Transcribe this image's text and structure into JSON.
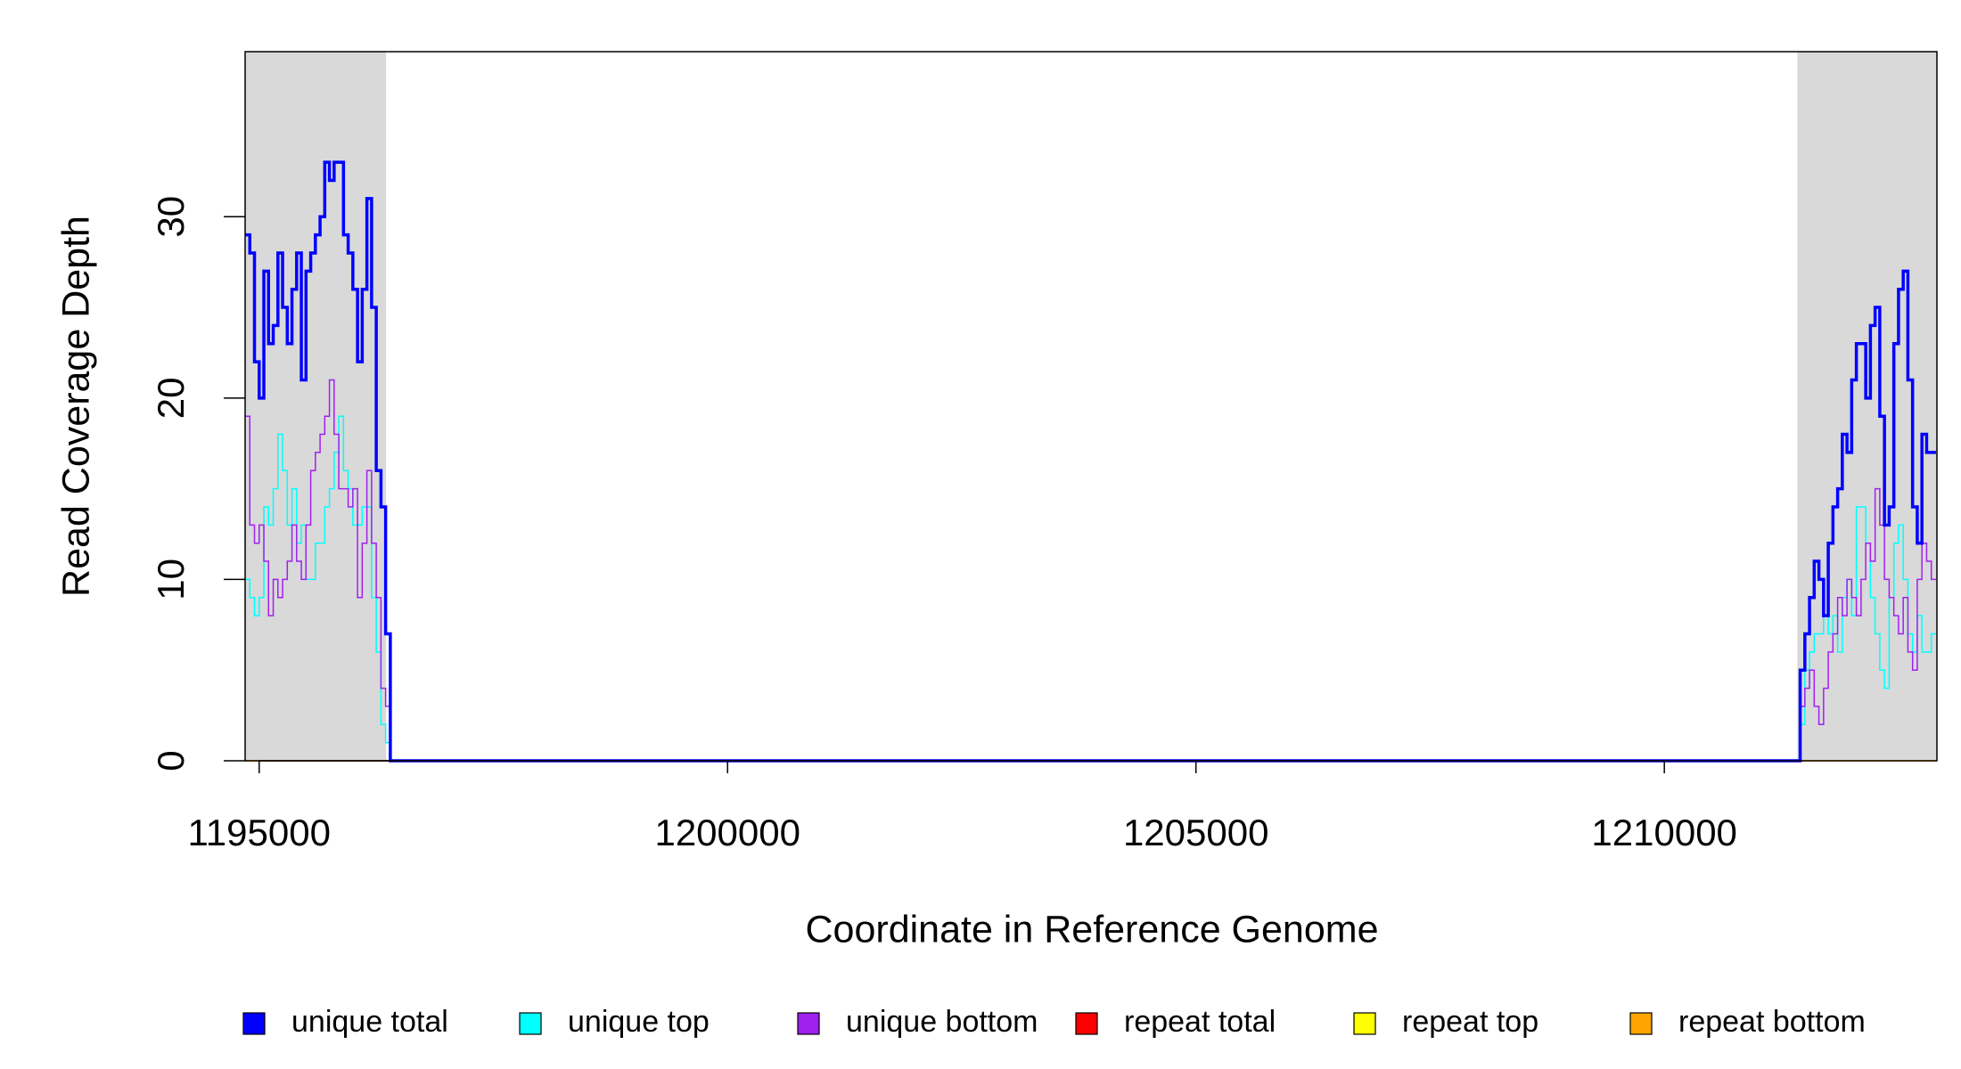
{
  "chart_data": {
    "type": "step",
    "xlabel": "Coordinate in Reference Genome",
    "ylabel": "Read Coverage Depth",
    "xlim": [
      1194850,
      1212910
    ],
    "ylim": [
      0,
      39.1
    ],
    "xticks": [
      1195000,
      1200000,
      1205000,
      1210000
    ],
    "yticks": [
      0,
      10,
      20,
      30
    ],
    "highlight_regions": [
      [
        1194850,
        1196355
      ],
      [
        1211420,
        1212910
      ]
    ],
    "highlight_color": "#d9d9d9",
    "x": [
      1194850,
      1194900,
      1194950,
      1195000,
      1195050,
      1195100,
      1195150,
      1195200,
      1195250,
      1195300,
      1195350,
      1195400,
      1195450,
      1195500,
      1195550,
      1195600,
      1195650,
      1195700,
      1195750,
      1195800,
      1195850,
      1195900,
      1195950,
      1196000,
      1196050,
      1196100,
      1196150,
      1196200,
      1196250,
      1196300,
      1196350,
      1196400,
      1211400,
      1211450,
      1211500,
      1211550,
      1211600,
      1211650,
      1211700,
      1211750,
      1211800,
      1211850,
      1211900,
      1211950,
      1212000,
      1212050,
      1212100,
      1212150,
      1212200,
      1212250,
      1212300,
      1212350,
      1212400,
      1212450,
      1212500,
      1212550,
      1212600,
      1212650,
      1212700,
      1212750,
      1212800,
      1212850,
      1212900
    ],
    "series": [
      {
        "name": "repeat total",
        "color": "#ff0000",
        "width": 1.5,
        "values": [
          0,
          0,
          0,
          0,
          0,
          0,
          0,
          0,
          0,
          0,
          0,
          0,
          0,
          0,
          0,
          0,
          0,
          0,
          0,
          0,
          0,
          0,
          0,
          0,
          0,
          0,
          0,
          0,
          0,
          0,
          0,
          0,
          0,
          0,
          0,
          0,
          0,
          0,
          0,
          0,
          0,
          0,
          0,
          0,
          0,
          0,
          0,
          0,
          0,
          0,
          0,
          0,
          0,
          0,
          0,
          0,
          0,
          0,
          0,
          0,
          0,
          0,
          0
        ]
      },
      {
        "name": "repeat top",
        "color": "#ffff00",
        "width": 1.5,
        "values": [
          0,
          0,
          0,
          0,
          0,
          0,
          0,
          0,
          0,
          0,
          0,
          0,
          0,
          0,
          0,
          0,
          0,
          0,
          0,
          0,
          0,
          0,
          0,
          0,
          0,
          0,
          0,
          0,
          0,
          0,
          0,
          0,
          0,
          0,
          0,
          0,
          0,
          0,
          0,
          0,
          0,
          0,
          0,
          0,
          0,
          0,
          0,
          0,
          0,
          0,
          0,
          0,
          0,
          0,
          0,
          0,
          0,
          0,
          0,
          0,
          0,
          0,
          0
        ]
      },
      {
        "name": "repeat bottom",
        "color": "#ffa500",
        "width": 1.5,
        "values": [
          0,
          0,
          0,
          0,
          0,
          0,
          0,
          0,
          0,
          0,
          0,
          0,
          0,
          0,
          0,
          0,
          0,
          0,
          0,
          0,
          0,
          0,
          0,
          0,
          0,
          0,
          0,
          0,
          0,
          0,
          0,
          0,
          0,
          0,
          0,
          0,
          0,
          0,
          0,
          0,
          0,
          0,
          0,
          0,
          0,
          0,
          0,
          0,
          0,
          0,
          0,
          0,
          0,
          0,
          0,
          0,
          0,
          0,
          0,
          0,
          0,
          0,
          0
        ]
      },
      {
        "name": "unique top",
        "color": "#00ffff",
        "width": 1.5,
        "values": [
          10,
          9,
          8,
          9,
          14,
          13,
          15,
          18,
          16,
          13,
          15,
          12,
          13,
          10,
          10,
          12,
          12,
          14,
          15,
          17,
          19,
          16,
          15,
          13,
          13,
          14,
          14,
          9,
          6,
          2,
          1,
          0,
          0,
          2,
          5,
          6,
          7,
          7,
          8,
          7,
          8,
          6,
          9,
          10,
          8,
          14,
          14,
          12,
          9,
          7,
          5,
          4,
          9,
          12,
          13,
          10,
          7,
          6,
          8,
          6,
          6,
          7,
          7
        ]
      },
      {
        "name": "unique bottom",
        "color": "#a020f0",
        "width": 1.5,
        "values": [
          19,
          13,
          12,
          13,
          11,
          8,
          10,
          9,
          10,
          11,
          13,
          11,
          10,
          13,
          16,
          17,
          18,
          19,
          21,
          18,
          15,
          15,
          14,
          15,
          9,
          12,
          16,
          12,
          9,
          4,
          3,
          0,
          0,
          3,
          4,
          5,
          3,
          2,
          4,
          6,
          7,
          9,
          8,
          10,
          9,
          8,
          10,
          12,
          11,
          15,
          13,
          10,
          9,
          8,
          7,
          9,
          6,
          5,
          10,
          12,
          11,
          10,
          10
        ]
      },
      {
        "name": "unique total",
        "color": "#0000ff",
        "width": 3.5,
        "values": [
          29,
          28,
          22,
          20,
          27,
          23,
          24,
          28,
          25,
          23,
          26,
          28,
          21,
          27,
          28,
          29,
          30,
          33,
          32,
          33,
          33,
          29,
          28,
          26,
          22,
          26,
          31,
          25,
          16,
          14,
          7,
          0,
          0,
          5,
          7,
          9,
          11,
          10,
          8,
          12,
          14,
          15,
          18,
          17,
          21,
          23,
          23,
          20,
          24,
          25,
          19,
          13,
          14,
          23,
          26,
          27,
          21,
          14,
          12,
          18,
          17,
          17,
          17
        ]
      }
    ],
    "legend": [
      {
        "name": "unique total",
        "color": "#0000ff"
      },
      {
        "name": "unique top",
        "color": "#00ffff"
      },
      {
        "name": "unique bottom",
        "color": "#a020f0"
      },
      {
        "name": "repeat total",
        "color": "#ff0000"
      },
      {
        "name": "repeat top",
        "color": "#ffff00"
      },
      {
        "name": "repeat bottom",
        "color": "#ffa500"
      }
    ]
  }
}
